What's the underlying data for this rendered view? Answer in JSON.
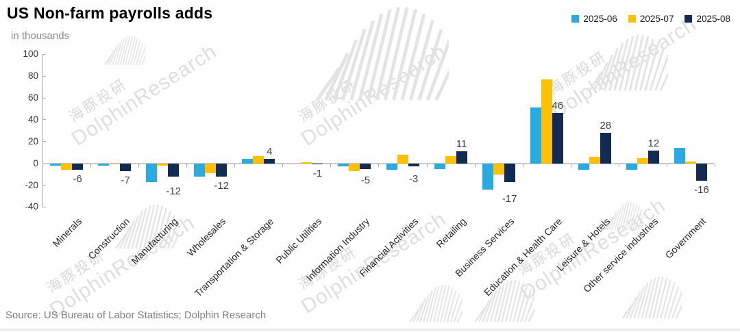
{
  "header": {
    "title": "US Non-farm payrolls adds",
    "subtitle": "in thousands"
  },
  "chart_data": {
    "type": "bar",
    "title": "US Non-farm payrolls adds",
    "unit_label": "in thousands",
    "categories": [
      "Minerals",
      "Construction",
      "Manufacturing",
      "Wholesales",
      "Transportation & Storage",
      "Public Utilities",
      "Information Industry",
      "Financial Activities",
      "Retailing",
      "Business Services",
      "Education & Health Care",
      "Leisure & Hotels",
      "Other service industries",
      "Government"
    ],
    "series": [
      {
        "name": "2025-06",
        "color": "#29ABE2",
        "values": [
          -2,
          -2,
          -17,
          -12,
          4,
          0,
          -3,
          -6,
          -5,
          -24,
          51,
          -6,
          -6,
          14
        ]
      },
      {
        "name": "2025-07",
        "color": "#FFC000",
        "values": [
          -6,
          -1,
          -2,
          -9,
          7,
          1,
          -7,
          8,
          7,
          -10,
          77,
          6,
          5,
          2
        ]
      },
      {
        "name": "2025-08",
        "color": "#122B52",
        "values": [
          -6,
          -7,
          -12,
          -12,
          4,
          -1,
          -5,
          -3,
          11,
          -17,
          46,
          28,
          12,
          -16
        ]
      }
    ],
    "data_labels": {
      "series": "2025-08",
      "values": [
        -6,
        -7,
        -12,
        -12,
        4,
        -1,
        -5,
        -3,
        11,
        -17,
        46,
        28,
        12,
        -16
      ]
    },
    "ylim": [
      -40,
      100
    ],
    "yticks": [
      100,
      80,
      60,
      40,
      20,
      0,
      -20,
      -40
    ],
    "grid": false,
    "legend_position": "top-right",
    "xlabel": "",
    "ylabel": "in thousands"
  },
  "watermark": {
    "cjk": "海豚投研",
    "latin": "DolphinResearch"
  },
  "source": "Source: US Bureau of Labor Statistics; Dolphin Research",
  "colors": {
    "axis": "#a6a6a6",
    "zero_line": "#c9c9c9",
    "label_text": "#404040"
  }
}
